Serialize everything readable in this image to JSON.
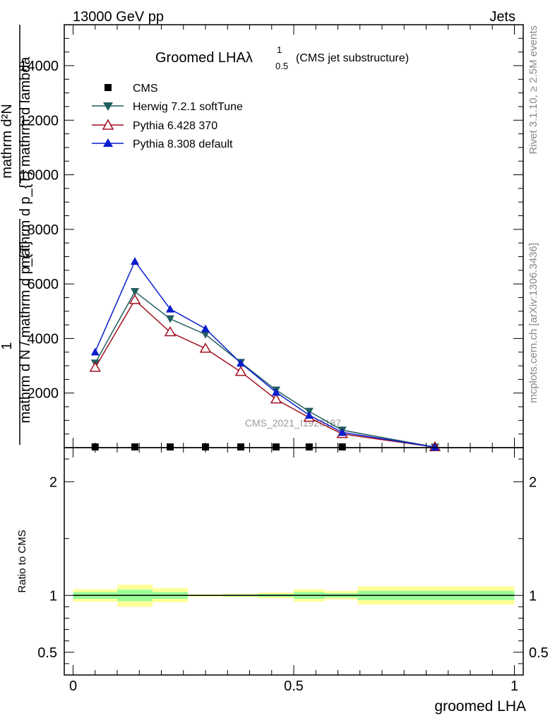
{
  "header": {
    "left": "13000 GeV pp",
    "right": "Jets"
  },
  "side_labels": {
    "rivet": "Rivet 3.1.10, ≥ 2.5M events",
    "mcplots": "mcplots.cern.ch [arXiv:1306.3436]"
  },
  "watermark": "CMS_2021_I1920187",
  "main_ylabel": {
    "top_numerator": "mathrm d²N",
    "top_denominator": "mathrm d p_{T} mathrm d lambda",
    "prefix": "1",
    "bottom": "mathrm d N / mathrm d p_{T}"
  },
  "ratio_ylabel": "Ratio to CMS",
  "colors": {
    "herwig": "#225e5e",
    "pythia6": "#a01020",
    "pythia8": "#0a1ecc",
    "band_outer": "#ffff99",
    "band_inner": "#99ff99"
  },
  "chart_data": [
    {
      "type": "line",
      "title": "Groomed LHAλ",
      "title_sup": "1",
      "title_sub": "0.5",
      "title_note": "(CMS jet substructure)",
      "xlabel": "groomed LHA",
      "xlim": [
        -0.02,
        1.02
      ],
      "ylim": [
        0,
        15500
      ],
      "yticks": [
        2000,
        4000,
        6000,
        8000,
        10000,
        12000,
        14000
      ],
      "ytick_labels": [
        "2000",
        "4000",
        "6000",
        "8000",
        "10000",
        "12000",
        "14000"
      ],
      "x": [
        0.05,
        0.14,
        0.22,
        0.3,
        0.38,
        0.46,
        0.535,
        0.61,
        0.82
      ],
      "series": [
        {
          "name": "CMS",
          "marker": "square",
          "values": [
            0,
            0,
            0,
            0,
            0,
            0,
            0,
            0,
            null
          ]
        },
        {
          "name": "Herwig 7.2.1 softTune",
          "marker": "triangle-down",
          "values": [
            3100,
            5720,
            4720,
            4150,
            3120,
            2110,
            1330,
            640,
            20
          ]
        },
        {
          "name": "Pythia 6.428 370",
          "marker": "triangle-up-open",
          "values": [
            2930,
            5410,
            4230,
            3630,
            2780,
            1770,
            1100,
            500,
            20
          ]
        },
        {
          "name": "Pythia 8.308 default",
          "marker": "triangle-up",
          "values": [
            3510,
            6830,
            5080,
            4360,
            3100,
            2030,
            1190,
            560,
            20
          ]
        }
      ],
      "legend_position": "top-left"
    },
    {
      "type": "area",
      "ylabel": "Ratio to CMS",
      "xlim": [
        -0.02,
        1.02
      ],
      "ylim": [
        0.3,
        2.3
      ],
      "yticks": [
        0.5,
        1,
        2
      ],
      "ytick_labels": [
        "0.5",
        "1",
        "2"
      ],
      "xticks": [
        0,
        0.5,
        1
      ],
      "xtick_labels": [
        "0",
        "0.5",
        "1"
      ],
      "bins": [
        {
          "x0": 0.0,
          "x1": 0.1,
          "outer": [
            0.945,
            1.055
          ],
          "inner": [
            0.97,
            1.03
          ]
        },
        {
          "x0": 0.1,
          "x1": 0.18,
          "outer": [
            0.9,
            1.095
          ],
          "inner": [
            0.95,
            1.05
          ]
        },
        {
          "x0": 0.18,
          "x1": 0.26,
          "outer": [
            0.94,
            1.065
          ],
          "inner": [
            0.97,
            1.03
          ]
        },
        {
          "x0": 0.26,
          "x1": 0.34,
          "outer": [
            0.99,
            1.01
          ],
          "inner": [
            0.995,
            1.005
          ]
        },
        {
          "x0": 0.34,
          "x1": 0.42,
          "outer": [
            0.985,
            1.015
          ],
          "inner": [
            0.992,
            1.008
          ]
        },
        {
          "x0": 0.42,
          "x1": 0.5,
          "outer": [
            0.975,
            1.025
          ],
          "inner": [
            0.987,
            1.013
          ]
        },
        {
          "x0": 0.5,
          "x1": 0.57,
          "outer": [
            0.945,
            1.055
          ],
          "inner": [
            0.97,
            1.03
          ]
        },
        {
          "x0": 0.57,
          "x1": 0.645,
          "outer": [
            0.965,
            1.04
          ],
          "inner": [
            0.98,
            1.02
          ]
        },
        {
          "x0": 0.645,
          "x1": 1.0,
          "outer": [
            0.92,
            1.08
          ],
          "inner": [
            0.96,
            1.04
          ]
        }
      ]
    }
  ]
}
